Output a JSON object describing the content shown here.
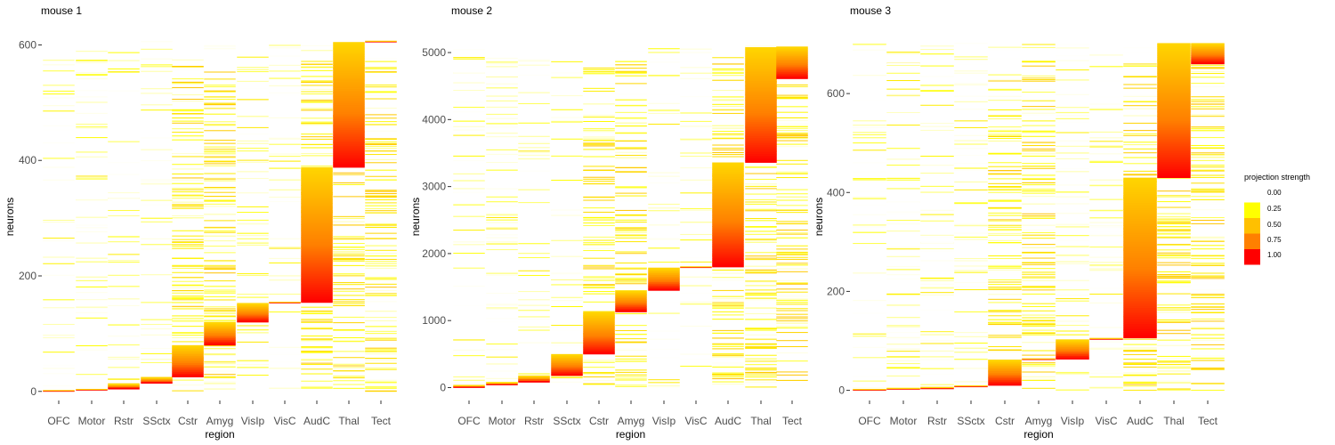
{
  "chart_data": [
    {
      "type": "heatmap",
      "title": "mouse 1",
      "xlabel": "region",
      "ylabel": "neurons",
      "categories": [
        "OFC",
        "Motor",
        "Rstr",
        "SSctx",
        "Cstr",
        "Amyg",
        "VisIp",
        "VisC",
        "AudC",
        "Thal",
        "Tect"
      ],
      "ylim": [
        -5,
        610
      ],
      "yticks": [
        0,
        200,
        400,
        600
      ],
      "grid": false,
      "blocks": [
        {
          "region": "OFC",
          "start": 0,
          "end": 2
        },
        {
          "region": "Motor",
          "start": 2,
          "end": 4
        },
        {
          "region": "Rstr",
          "start": 4,
          "end": 14
        },
        {
          "region": "SSctx",
          "start": 14,
          "end": 25
        },
        {
          "region": "Cstr",
          "start": 25,
          "end": 80
        },
        {
          "region": "Amyg",
          "start": 80,
          "end": 120
        },
        {
          "region": "VisIp",
          "start": 120,
          "end": 153
        },
        {
          "region": "VisC",
          "start": 153,
          "end": 154
        },
        {
          "region": "AudC",
          "start": 154,
          "end": 388
        },
        {
          "region": "Thal",
          "start": 388,
          "end": 605
        },
        {
          "region": "Tect",
          "start": 605,
          "end": 606
        }
      ]
    },
    {
      "type": "heatmap",
      "title": "mouse 2",
      "xlabel": "region",
      "ylabel": "neurons",
      "categories": [
        "OFC",
        "Motor",
        "Rstr",
        "SSctx",
        "Cstr",
        "Amyg",
        "VisIp",
        "VisC",
        "AudC",
        "Thal",
        "Tect"
      ],
      "ylim": [
        -100,
        5200
      ],
      "yticks": [
        0,
        1000,
        2000,
        3000,
        4000,
        5000
      ],
      "grid": false,
      "blocks": [
        {
          "region": "OFC",
          "start": 0,
          "end": 40
        },
        {
          "region": "Motor",
          "start": 40,
          "end": 80
        },
        {
          "region": "Rstr",
          "start": 80,
          "end": 180
        },
        {
          "region": "SSctx",
          "start": 180,
          "end": 500
        },
        {
          "region": "Cstr",
          "start": 500,
          "end": 1130
        },
        {
          "region": "Amyg",
          "start": 1130,
          "end": 1450
        },
        {
          "region": "VisIp",
          "start": 1450,
          "end": 1790
        },
        {
          "region": "VisC",
          "start": 1790,
          "end": 1800
        },
        {
          "region": "AudC",
          "start": 1800,
          "end": 3360
        },
        {
          "region": "Thal",
          "start": 3360,
          "end": 5080
        },
        {
          "region": "Tect",
          "start": 4610,
          "end": 5090
        }
      ]
    },
    {
      "type": "heatmap",
      "title": "mouse 3",
      "xlabel": "region",
      "ylabel": "neurons",
      "categories": [
        "OFC",
        "Motor",
        "Rstr",
        "SSctx",
        "Cstr",
        "Amyg",
        "VisIp",
        "VisC",
        "AudC",
        "Thal",
        "Tect"
      ],
      "ylim": [
        -8,
        710
      ],
      "yticks": [
        0,
        200,
        400,
        600
      ],
      "grid": false,
      "blocks": [
        {
          "region": "OFC",
          "start": 0,
          "end": 2
        },
        {
          "region": "Motor",
          "start": 2,
          "end": 3
        },
        {
          "region": "Rstr",
          "start": 3,
          "end": 7
        },
        {
          "region": "SSctx",
          "start": 7,
          "end": 10
        },
        {
          "region": "Cstr",
          "start": 10,
          "end": 62
        },
        {
          "region": "Amyg",
          "start": 62,
          "end": 63
        },
        {
          "region": "VisIp",
          "start": 63,
          "end": 103
        },
        {
          "region": "VisC",
          "start": 103,
          "end": 106
        },
        {
          "region": "AudC",
          "start": 106,
          "end": 430
        },
        {
          "region": "Thal",
          "start": 430,
          "end": 702
        },
        {
          "region": "Tect",
          "start": 660,
          "end": 702
        }
      ]
    }
  ],
  "legend": {
    "title": "projection strength",
    "placement": "right",
    "ticks": [
      "0.00",
      "0.25",
      "0.50",
      "0.75",
      "1.00"
    ],
    "colors": [
      "#FFFFFF",
      "#FFFF00",
      "#FFC000",
      "#FF8000",
      "#FF0000"
    ]
  }
}
